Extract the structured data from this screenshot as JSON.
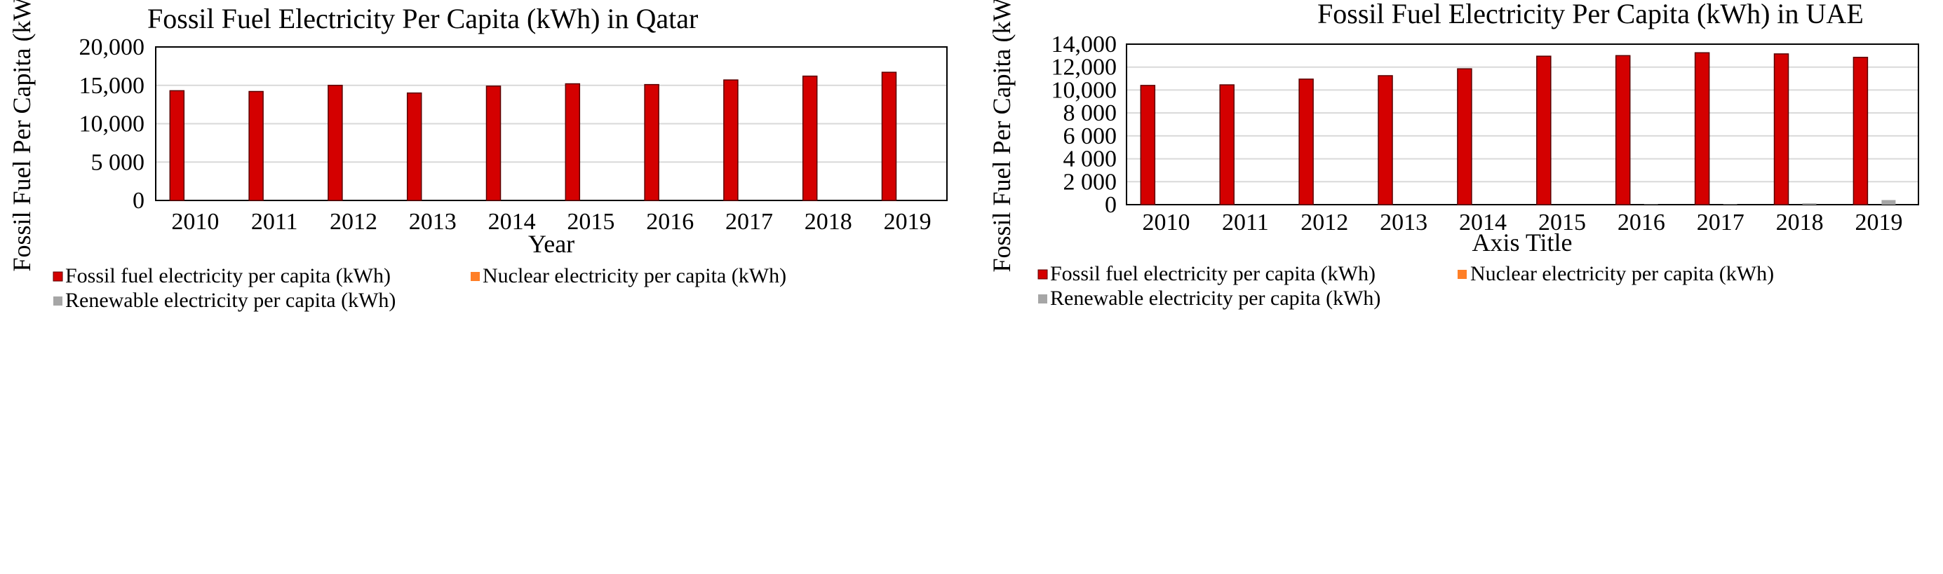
{
  "colors": {
    "fossil": "#d40000",
    "fossil_edge": "#5a0000",
    "nuclear": "#ff7f27",
    "renewable": "#a6a6a6",
    "grid": "#d9d9d9",
    "axis": "#000000"
  },
  "chart_data": [
    {
      "type": "bar",
      "title": "Fossil Fuel Electricity Per Capita (kWh) in Qatar",
      "xlabel": "Year",
      "ylabel": "Fossil Fuel Per Capita (kWh)",
      "categories": [
        "2010",
        "2011",
        "2012",
        "2013",
        "2014",
        "2015",
        "2016",
        "2017",
        "2018",
        "2019"
      ],
      "ylim": [
        0,
        20000
      ],
      "yticks": [
        0,
        5000,
        10000,
        15000,
        20000
      ],
      "ytick_labels": [
        "0",
        "5 000",
        "10,000",
        "15,000",
        "20,000"
      ],
      "series": [
        {
          "name": "Fossil fuel electricity per capita (kWh)",
          "color_key": "fossil",
          "values": [
            14300,
            14200,
            15000,
            14000,
            14900,
            15200,
            15100,
            15700,
            16200,
            16700
          ]
        },
        {
          "name": "Nuclear electricity per capita (kWh)",
          "color_key": "nuclear",
          "values": [
            0,
            0,
            0,
            0,
            0,
            0,
            0,
            0,
            0,
            0
          ]
        },
        {
          "name": "Renewable electricity per capita (kWh)",
          "color_key": "renewable",
          "values": [
            0,
            0,
            0,
            0,
            0,
            0,
            0,
            0,
            0,
            0
          ]
        }
      ],
      "legend_position": "bottom"
    },
    {
      "type": "bar",
      "title": "Fossil Fuel Electricity Per Capita (kWh) in UAE",
      "xlabel": "Axis Title",
      "ylabel": "Fossil Fuel Per Capita (kWh)",
      "categories": [
        "2010",
        "2011",
        "2012",
        "2013",
        "2014",
        "2015",
        "2016",
        "2017",
        "2018",
        "2019"
      ],
      "ylim": [
        0,
        14000
      ],
      "yticks": [
        0,
        2000,
        4000,
        6000,
        8000,
        10000,
        12000,
        14000
      ],
      "ytick_labels": [
        "0",
        "2 000",
        "4 000",
        "6 000",
        "8 000",
        "10,000",
        "12,000",
        "14,000"
      ],
      "series": [
        {
          "name": "Fossil fuel electricity per capita (kWh)",
          "color_key": "fossil",
          "values": [
            10400,
            10450,
            10950,
            11250,
            11850,
            12950,
            13000,
            13250,
            13150,
            12850
          ]
        },
        {
          "name": "Nuclear electricity per capita (kWh)",
          "color_key": "nuclear",
          "values": [
            0,
            0,
            0,
            0,
            0,
            0,
            0,
            0,
            0,
            0
          ]
        },
        {
          "name": "Renewable electricity per capita (kWh)",
          "color_key": "renewable",
          "values": [
            10,
            12,
            15,
            20,
            25,
            30,
            35,
            40,
            120,
            400
          ]
        }
      ],
      "legend_position": "bottom"
    }
  ]
}
